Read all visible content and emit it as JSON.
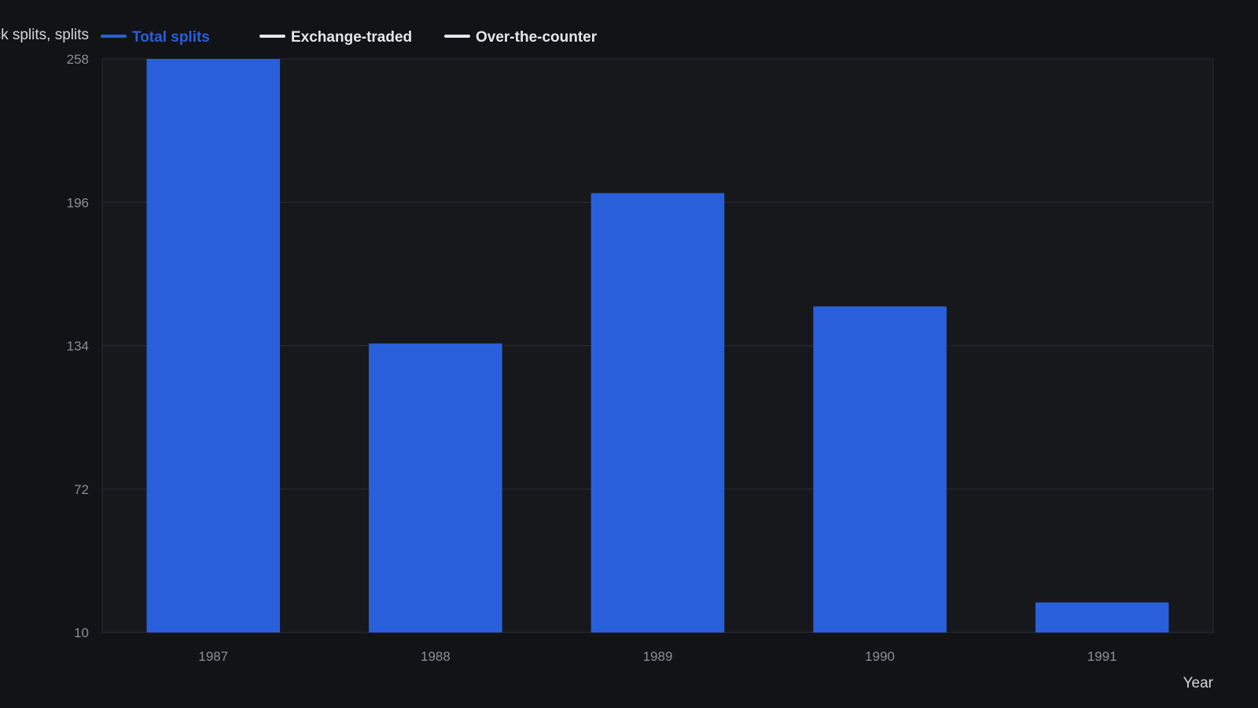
{
  "chart_data": {
    "type": "bar",
    "ylabel": "Stock splits, splits",
    "xlabel": "Year",
    "categories": [
      "1987",
      "1988",
      "1989",
      "1990",
      "1991"
    ],
    "series": [
      {
        "name": "Total splits",
        "values": [
          258,
          135,
          200,
          151,
          23
        ]
      }
    ],
    "legend": {
      "placement": "top-left",
      "items": [
        {
          "label": "Total splits",
          "color": "#2a5fdb",
          "active": true
        },
        {
          "label": "Exchange-traded",
          "color": "#e6e6e6",
          "active": false
        },
        {
          "label": "Over-the-counter",
          "color": "#e6e6e6",
          "active": false
        }
      ]
    },
    "ylim": [
      10,
      258
    ],
    "yticks": [
      "258",
      "196",
      "134",
      "72",
      "10"
    ],
    "grid": true,
    "colors": {
      "background": "#111317",
      "plot_background": "#16181c",
      "bar": "#2a5fdb",
      "grid": "#2a2d33",
      "tick_text": "#8b8e94",
      "axis_title": "#d4d6da"
    }
  }
}
